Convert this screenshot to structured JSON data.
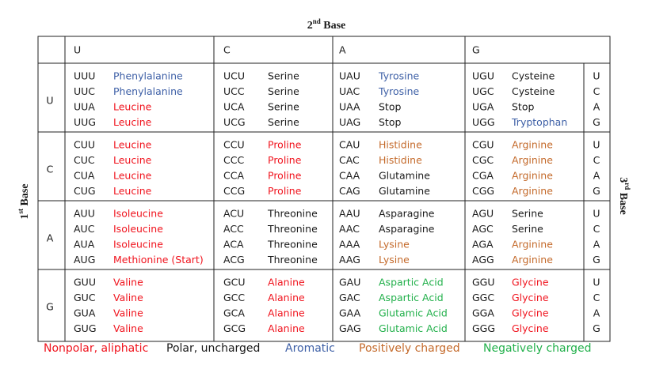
{
  "header": {
    "second_base": {
      "num": "2",
      "sup": "nd",
      "text": "Base"
    },
    "first_base": {
      "num": "1",
      "sup": "st",
      "text": "Base"
    },
    "third_base": {
      "num": "3",
      "sup": "rd",
      "text": "Base"
    }
  },
  "columns": [
    "U",
    "C",
    "A",
    "G"
  ],
  "rows": [
    {
      "first": "U",
      "third": [
        "U",
        "C",
        "A",
        "G"
      ],
      "cols": [
        [
          [
            "UUU",
            "Phenylalanine",
            2
          ],
          [
            "UUC",
            "Phenylalanine",
            2
          ],
          [
            "UUA",
            "Leucine",
            0
          ],
          [
            "UUG",
            "Leucine",
            0
          ]
        ],
        [
          [
            "UCU",
            "Serine",
            1
          ],
          [
            "UCC",
            "Serine",
            1
          ],
          [
            "UCA",
            "Serine",
            1
          ],
          [
            "UCG",
            "Serine",
            1
          ]
        ],
        [
          [
            "UAU",
            "Tyrosine",
            2
          ],
          [
            "UAC",
            "Tyrosine",
            2
          ],
          [
            "UAA",
            "Stop",
            1
          ],
          [
            "UAG",
            "Stop",
            1
          ]
        ],
        [
          [
            "UGU",
            "Cysteine",
            1
          ],
          [
            "UGC",
            "Cysteine",
            1
          ],
          [
            "UGA",
            "Stop",
            1
          ],
          [
            "UGG",
            "Tryptophan",
            2
          ]
        ]
      ]
    },
    {
      "first": "C",
      "third": [
        "U",
        "C",
        "A",
        "G"
      ],
      "cols": [
        [
          [
            "CUU",
            "Leucine",
            0
          ],
          [
            "CUC",
            "Leucine",
            0
          ],
          [
            "CUA",
            "Leucine",
            0
          ],
          [
            "CUG",
            "Leucine",
            0
          ]
        ],
        [
          [
            "CCU",
            "Proline",
            0
          ],
          [
            "CCC",
            "Proline",
            0
          ],
          [
            "CCA",
            "Proline",
            0
          ],
          [
            "CCG",
            "Proline",
            0
          ]
        ],
        [
          [
            "CAU",
            "Histidine",
            3
          ],
          [
            "CAC",
            "Histidine",
            3
          ],
          [
            "CAA",
            "Glutamine",
            1
          ],
          [
            "CAG",
            "Glutamine",
            1
          ]
        ],
        [
          [
            "CGU",
            "Arginine",
            3
          ],
          [
            "CGC",
            "Arginine",
            3
          ],
          [
            "CGA",
            "Arginine",
            3
          ],
          [
            "CGG",
            "Arginine",
            3
          ]
        ]
      ]
    },
    {
      "first": "A",
      "third": [
        "U",
        "C",
        "A",
        "G"
      ],
      "cols": [
        [
          [
            "AUU",
            "Isoleucine",
            0
          ],
          [
            "AUC",
            "Isoleucine",
            0
          ],
          [
            "AUA",
            "Isoleucine",
            0
          ],
          [
            "AUG",
            "Methionine (Start)",
            0
          ]
        ],
        [
          [
            "ACU",
            "Threonine",
            1
          ],
          [
            "ACC",
            "Threonine",
            1
          ],
          [
            "ACA",
            "Threonine",
            1
          ],
          [
            "ACG",
            "Threonine",
            1
          ]
        ],
        [
          [
            "AAU",
            "Asparagine",
            1
          ],
          [
            "AAC",
            "Asparagine",
            1
          ],
          [
            "AAA",
            "Lysine",
            3
          ],
          [
            "AAG",
            "Lysine",
            3
          ]
        ],
        [
          [
            "AGU",
            "Serine",
            1
          ],
          [
            "AGC",
            "Serine",
            1
          ],
          [
            "AGA",
            "Arginine",
            3
          ],
          [
            "AGG",
            "Arginine",
            3
          ]
        ]
      ]
    },
    {
      "first": "G",
      "third": [
        "U",
        "C",
        "A",
        "G"
      ],
      "cols": [
        [
          [
            "GUU",
            "Valine",
            0
          ],
          [
            "GUC",
            "Valine",
            0
          ],
          [
            "GUA",
            "Valine",
            0
          ],
          [
            "GUG",
            "Valine",
            0
          ]
        ],
        [
          [
            "GCU",
            "Alanine",
            0
          ],
          [
            "GCC",
            "Alanine",
            0
          ],
          [
            "GCA",
            "Alanine",
            0
          ],
          [
            "GCG",
            "Alanine",
            0
          ]
        ],
        [
          [
            "GAU",
            "Aspartic Acid",
            4
          ],
          [
            "GAC",
            "Aspartic Acid",
            4
          ],
          [
            "GAA",
            "Glutamic Acid",
            4
          ],
          [
            "GAG",
            "Glutamic Acid",
            4
          ]
        ],
        [
          [
            "GGU",
            "Glycine",
            0
          ],
          [
            "GGC",
            "Glycine",
            0
          ],
          [
            "GGA",
            "Glycine",
            0
          ],
          [
            "GGG",
            "Glycine",
            0
          ]
        ]
      ]
    }
  ],
  "legend": [
    {
      "label": "Nonpolar, aliphatic",
      "color": "#f0141e"
    },
    {
      "label": "Polar, uncharged",
      "color": "#1a1a1a"
    },
    {
      "label": "Aromatic",
      "color": "#3d5fa6"
    },
    {
      "label": "Positively charged",
      "color": "#c46a2b"
    },
    {
      "label": "Negatively charged",
      "color": "#22b04b"
    }
  ]
}
